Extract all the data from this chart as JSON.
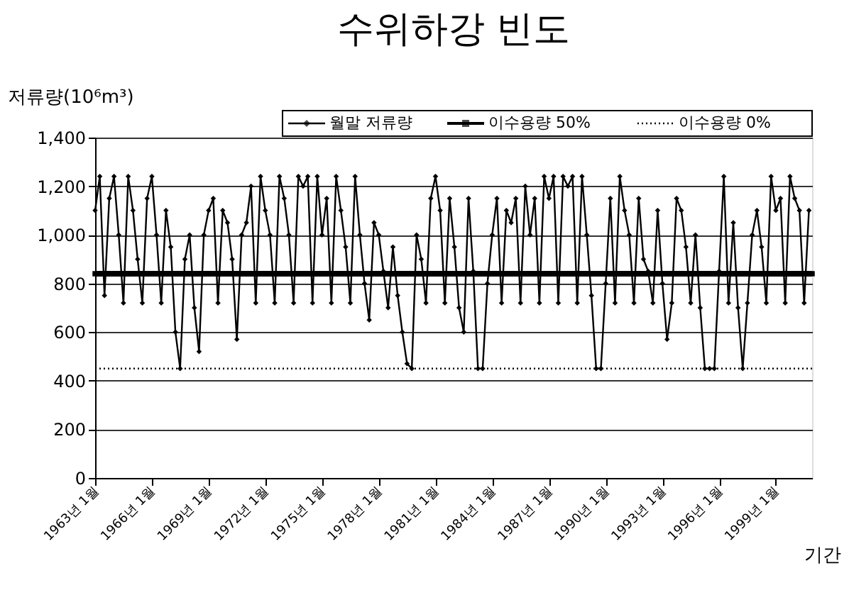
{
  "chart_data": {
    "type": "line",
    "title": "수위하강 빈도",
    "ylabel": "저류량(10⁶m³)",
    "xlabel": "기간",
    "xlim": [
      "1963-01",
      "2000-12"
    ],
    "xticks": [
      {
        "value": "1963-01",
        "label": "1963년 1월"
      },
      {
        "value": "1966-01",
        "label": "1966년 1월"
      },
      {
        "value": "1969-01",
        "label": "1969년 1월"
      },
      {
        "value": "1972-01",
        "label": "1972년 1월"
      },
      {
        "value": "1975-01",
        "label": "1975년 1월"
      },
      {
        "value": "1978-01",
        "label": "1978년 1월"
      },
      {
        "value": "1981-01",
        "label": "1981년 1월"
      },
      {
        "value": "1984-01",
        "label": "1984년 1월"
      },
      {
        "value": "1987-01",
        "label": "1987년 1월"
      },
      {
        "value": "1990-01",
        "label": "1990년 1월"
      },
      {
        "value": "1993-01",
        "label": "1993년 1월"
      },
      {
        "value": "1996-01",
        "label": "1996년 1월"
      },
      {
        "value": "1999-01",
        "label": "1999년 1월"
      }
    ],
    "ylim": [
      0,
      1400
    ],
    "yticks": [
      0,
      200,
      400,
      600,
      800,
      {
        "value": 1000,
        "label": "1,000"
      },
      {
        "value": 1200,
        "label": "1,200"
      },
      {
        "value": 1400,
        "label": "1,400"
      }
    ],
    "grid": "y",
    "legend": "top right",
    "series": [
      {
        "name": "월말 저류량",
        "color": "#000000",
        "marker": "diamond",
        "line_style": "solid",
        "x": [
          "1963-01",
          "1963-04",
          "1963-07",
          "1963-10",
          "1964-01",
          "1964-04",
          "1964-07",
          "1964-10",
          "1965-01",
          "1965-04",
          "1965-07",
          "1965-10",
          "1966-01",
          "1966-04",
          "1966-07",
          "1966-10",
          "1967-01",
          "1967-04",
          "1967-07",
          "1967-10",
          "1968-01",
          "1968-04",
          "1968-07",
          "1968-10",
          "1969-01",
          "1969-04",
          "1969-07",
          "1969-10",
          "1970-01",
          "1970-04",
          "1970-07",
          "1970-10",
          "1971-01",
          "1971-04",
          "1971-07",
          "1971-10",
          "1972-01",
          "1972-04",
          "1972-07",
          "1972-10",
          "1973-01",
          "1973-04",
          "1973-07",
          "1973-10",
          "1974-01",
          "1974-04",
          "1974-07",
          "1974-10",
          "1975-01",
          "1975-04",
          "1975-07",
          "1975-10",
          "1976-01",
          "1976-04",
          "1976-07",
          "1976-10",
          "1977-01",
          "1977-04",
          "1977-07",
          "1977-10",
          "1978-01",
          "1978-04",
          "1978-07",
          "1978-10",
          "1979-01",
          "1979-04",
          "1979-07",
          "1979-10",
          "1980-01",
          "1980-04",
          "1980-07",
          "1980-10",
          "1981-01",
          "1981-04",
          "1981-07",
          "1981-10",
          "1982-01",
          "1982-04",
          "1982-07",
          "1982-10",
          "1983-01",
          "1983-04",
          "1983-07",
          "1983-10",
          "1984-01",
          "1984-04",
          "1984-07",
          "1984-10",
          "1985-01",
          "1985-04",
          "1985-07",
          "1985-10",
          "1986-01",
          "1986-04",
          "1986-07",
          "1986-10",
          "1987-01",
          "1987-04",
          "1987-07",
          "1987-10",
          "1988-01",
          "1988-04",
          "1988-07",
          "1988-10",
          "1989-01",
          "1989-04",
          "1989-07",
          "1989-10",
          "1990-01",
          "1990-04",
          "1990-07",
          "1990-10",
          "1991-01",
          "1991-04",
          "1991-07",
          "1991-10",
          "1992-01",
          "1992-04",
          "1992-07",
          "1992-10",
          "1993-01",
          "1993-04",
          "1993-07",
          "1993-10",
          "1994-01",
          "1994-04",
          "1994-07",
          "1994-10",
          "1995-01",
          "1995-04",
          "1995-07",
          "1995-10",
          "1996-01",
          "1996-04",
          "1996-07",
          "1996-10",
          "1997-01",
          "1997-04",
          "1997-07",
          "1997-10",
          "1998-01",
          "1998-04",
          "1998-07",
          "1998-10",
          "1999-01",
          "1999-04",
          "1999-07",
          "1999-10",
          "2000-01",
          "2000-04",
          "2000-07",
          "2000-10"
        ],
        "values": [
          1100,
          1240,
          750,
          1150,
          1240,
          1000,
          720,
          1240,
          1100,
          900,
          720,
          1150,
          1240,
          1000,
          720,
          1100,
          950,
          600,
          450,
          900,
          1000,
          700,
          520,
          1000,
          1100,
          1150,
          720,
          1100,
          1050,
          900,
          570,
          1000,
          1050,
          1200,
          720,
          1240,
          1100,
          1000,
          720,
          1240,
          1150,
          1000,
          720,
          1240,
          1200,
          1240,
          720,
          1240,
          1000,
          1150,
          720,
          1240,
          1100,
          950,
          720,
          1240,
          1000,
          800,
          650,
          1050,
          1000,
          850,
          700,
          950,
          750,
          600,
          470,
          450,
          1000,
          900,
          720,
          1150,
          1240,
          1100,
          720,
          1150,
          950,
          700,
          600,
          1150,
          850,
          450,
          450,
          800,
          1000,
          1150,
          720,
          1100,
          1050,
          1150,
          720,
          1200,
          1000,
          1150,
          720,
          1240,
          1150,
          1240,
          720,
          1240,
          1200,
          1240,
          720,
          1240,
          1000,
          750,
          450,
          450,
          800,
          1150,
          720,
          1240,
          1100,
          1000,
          720,
          1150,
          900,
          850,
          720,
          1100,
          800,
          570,
          720,
          1150,
          1100,
          950,
          720,
          1000,
          700,
          450,
          450,
          450,
          850,
          1240,
          720,
          1050,
          700,
          450,
          720,
          1000,
          1100,
          950,
          720,
          1240,
          1100,
          1150,
          720,
          1240,
          1150,
          1100,
          720,
          1100
        ]
      },
      {
        "name": "이수용량 50%",
        "color": "#000000",
        "marker": "square",
        "line_style": "solid",
        "x": [
          "1963-01",
          "2000-12"
        ],
        "values": [
          840,
          840
        ]
      },
      {
        "name": "이수용량 0%",
        "color": "#000000",
        "marker": "none",
        "line_style": "dotted",
        "x": [
          "1963-01",
          "2000-12"
        ],
        "values": [
          450,
          450
        ]
      }
    ]
  }
}
